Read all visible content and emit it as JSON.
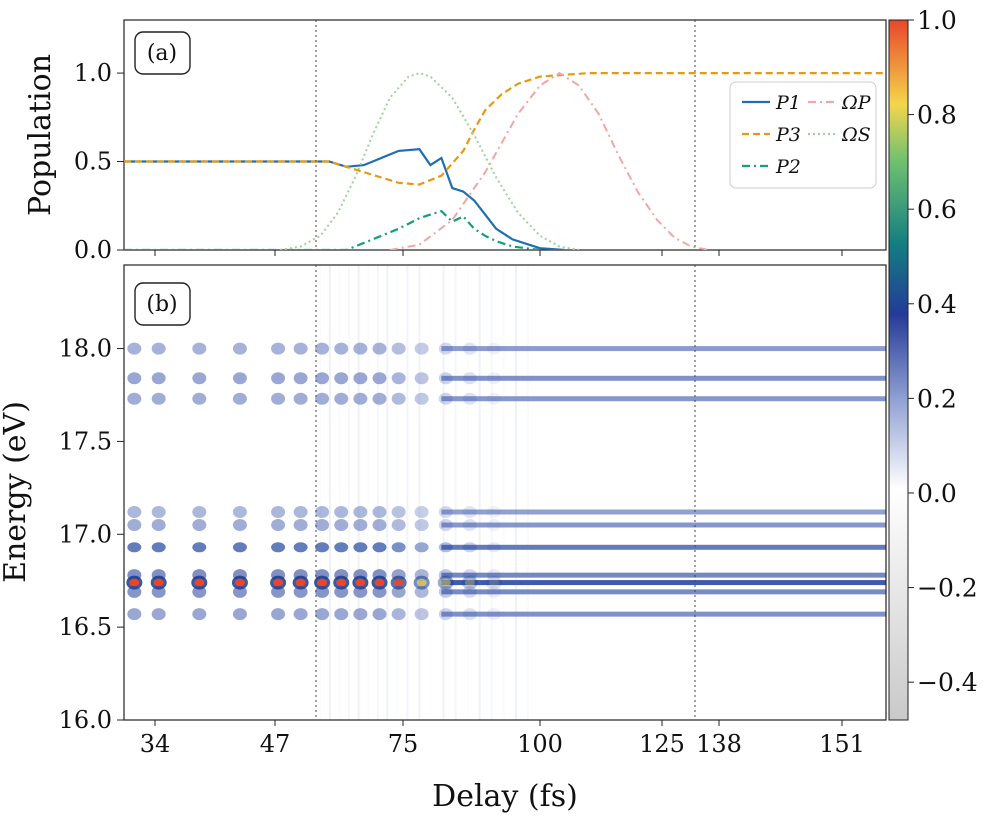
{
  "colors": {
    "P1": "#1f6fb0",
    "P3": "#e69a12",
    "P2": "#159e7a",
    "OmegaP": "#f2a6a6",
    "OmegaS": "#9fd39a",
    "vline": "#444444"
  },
  "chart_data": [
    {
      "panel": "(a)",
      "type": "line",
      "xlabel": "",
      "ylabel": "Population",
      "xlim": [
        28,
        161
      ],
      "ylim": [
        0,
        1.3
      ],
      "yticks": [
        "0.0",
        "0.5",
        "1.0"
      ],
      "vlines": [
        55,
        133
      ],
      "legend_position": "top-right",
      "legend": [
        "P1",
        "P3",
        "P2",
        "ΩP",
        "ΩS"
      ],
      "series": [
        {
          "name": "P1",
          "style": "solid",
          "x": [
            28,
            50,
            58,
            62,
            66,
            70,
            74,
            78,
            80,
            82,
            84,
            86,
            88,
            90,
            92,
            95,
            98,
            100,
            105
          ],
          "y": [
            0.5,
            0.5,
            0.5,
            0.47,
            0.48,
            0.52,
            0.56,
            0.57,
            0.48,
            0.52,
            0.35,
            0.33,
            0.28,
            0.2,
            0.12,
            0.06,
            0.03,
            0.01,
            0.0
          ]
        },
        {
          "name": "P3",
          "style": "dashed",
          "x": [
            28,
            50,
            58,
            62,
            66,
            70,
            74,
            78,
            82,
            86,
            88,
            90,
            93,
            96,
            100,
            105,
            110,
            161
          ],
          "y": [
            0.5,
            0.5,
            0.5,
            0.47,
            0.44,
            0.41,
            0.38,
            0.37,
            0.42,
            0.56,
            0.68,
            0.79,
            0.88,
            0.94,
            0.98,
            0.99,
            1.0,
            1.0
          ]
        },
        {
          "name": "P2",
          "style": "dashdot",
          "x": [
            28,
            62,
            66,
            70,
            74,
            78,
            80,
            82,
            84,
            86,
            88,
            90,
            92,
            95,
            100
          ],
          "y": [
            0.0,
            0.0,
            0.04,
            0.08,
            0.12,
            0.18,
            0.2,
            0.22,
            0.16,
            0.19,
            0.12,
            0.08,
            0.05,
            0.02,
            0.0
          ]
        },
        {
          "name": "ΩP",
          "style": "dashdot",
          "x": [
            72,
            78,
            84,
            90,
            96,
            100,
            104,
            108,
            112,
            116,
            120,
            124,
            128,
            132,
            136
          ],
          "y": [
            0.0,
            0.03,
            0.17,
            0.44,
            0.77,
            0.93,
            1.0,
            0.93,
            0.77,
            0.54,
            0.33,
            0.17,
            0.07,
            0.02,
            0.0
          ]
        },
        {
          "name": "ΩS",
          "style": "dotted",
          "x": [
            48,
            52,
            56,
            60,
            64,
            68,
            72,
            76,
            78,
            80,
            84,
            88,
            92,
            96,
            100,
            104,
            108
          ],
          "y": [
            0.0,
            0.02,
            0.08,
            0.21,
            0.41,
            0.65,
            0.86,
            0.98,
            1.0,
            0.98,
            0.86,
            0.65,
            0.41,
            0.21,
            0.08,
            0.02,
            0.0
          ]
        }
      ]
    },
    {
      "panel": "(b)",
      "type": "heatmap",
      "xlabel": "Delay (fs)",
      "ylabel": "Energy (eV)",
      "xlim": [
        28,
        161
      ],
      "ylim": [
        16.0,
        18.45
      ],
      "xticks": [
        "34",
        "47",
        "75",
        "100",
        "125",
        "138",
        "151"
      ],
      "yticks": [
        "16.0",
        "16.5",
        "17.0",
        "17.5",
        "18.0"
      ],
      "vlines": [
        55,
        133
      ],
      "bands": [
        {
          "energy": 18.0,
          "strength": 0.35
        },
        {
          "energy": 17.84,
          "strength": 0.45
        },
        {
          "energy": 17.73,
          "strength": 0.4
        },
        {
          "energy": 17.12,
          "strength": 0.3
        },
        {
          "energy": 17.05,
          "strength": 0.4
        },
        {
          "energy": 16.93,
          "strength": 0.7
        },
        {
          "energy": 16.78,
          "strength": 0.55
        },
        {
          "energy": 16.74,
          "strength": 1.0
        },
        {
          "energy": 16.69,
          "strength": 0.5
        },
        {
          "energy": 16.57,
          "strength": 0.45
        }
      ],
      "colorbar": {
        "range": [
          -0.48,
          1.0
        ],
        "ticks": [
          "1.0",
          "0.8",
          "0.6",
          "0.4",
          "0.2",
          "0.0",
          "−0.2",
          "−0.4"
        ]
      }
    }
  ]
}
